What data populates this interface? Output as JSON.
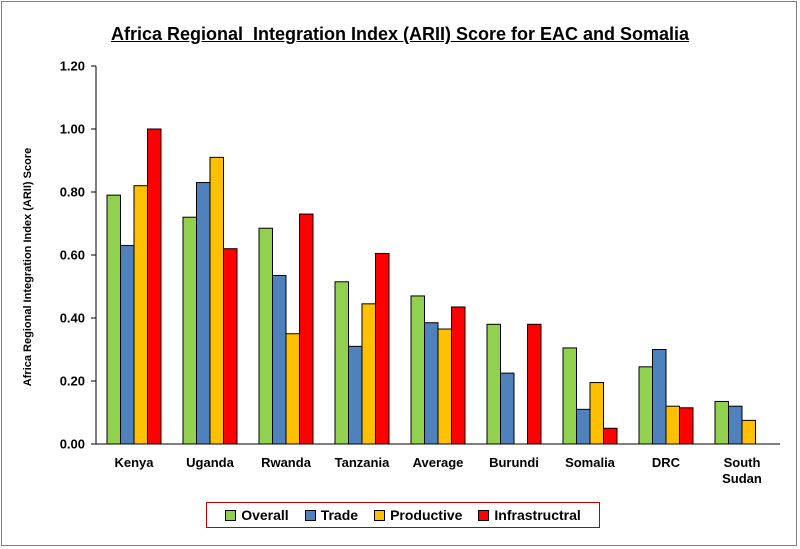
{
  "chart_data": {
    "type": "bar",
    "title": "Africa Regional  Integration Index (ARII) Score for EAC and Somalia",
    "ylabel": "Africa Regional  Integration Index (ARII) Score",
    "xlabel": "",
    "ylim": [
      0,
      1.2
    ],
    "yticks": [
      "0.00",
      "0.20",
      "0.40",
      "0.60",
      "0.80",
      "1.00",
      "1.20"
    ],
    "grid": false,
    "legend_position": "bottom",
    "categories": [
      [
        "Kenya"
      ],
      [
        "Uganda"
      ],
      [
        "Rwanda"
      ],
      [
        "Tanzania"
      ],
      [
        "Average"
      ],
      [
        "Burundi"
      ],
      [
        "Somalia"
      ],
      [
        "DRC"
      ],
      [
        "South",
        "Sudan"
      ]
    ],
    "series": [
      {
        "name": "Overall",
        "color": "#92d050",
        "values": [
          0.79,
          0.72,
          0.685,
          0.515,
          0.47,
          0.38,
          0.305,
          0.245,
          0.135
        ]
      },
      {
        "name": "Trade",
        "color": "#4f81bd",
        "values": [
          0.63,
          0.83,
          0.535,
          0.31,
          0.385,
          0.225,
          0.11,
          0.3,
          0.12
        ]
      },
      {
        "name": "Productive",
        "color": "#ffc000",
        "values": [
          0.82,
          0.91,
          0.35,
          0.445,
          0.365,
          0.0,
          0.195,
          0.12,
          0.075
        ]
      },
      {
        "name": "Infrastructral",
        "color": "#ff0000",
        "values": [
          1.0,
          0.62,
          0.73,
          0.605,
          0.435,
          0.38,
          0.05,
          0.115,
          0.0
        ]
      }
    ]
  }
}
